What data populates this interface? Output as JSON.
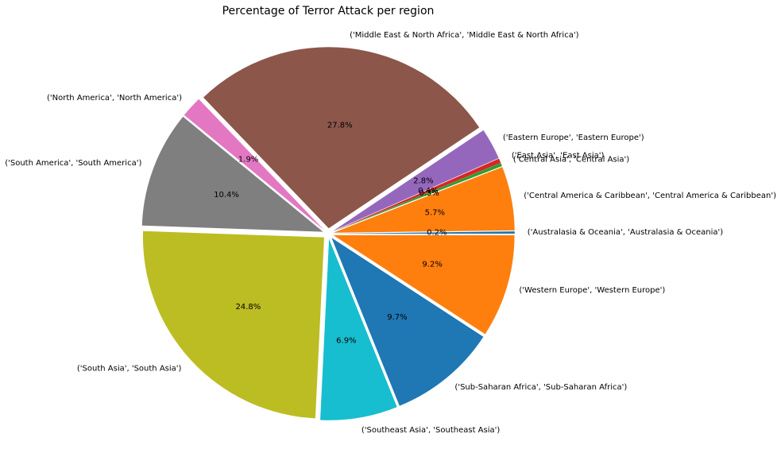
{
  "chart_data": {
    "type": "pie",
    "title": "Percentage of Terror Attack per region",
    "start_angle_deg": 0,
    "direction": "counterclockwise",
    "slices": [
      {
        "label": "('Australasia & Oceania', 'Australasia & Oceania')",
        "value": 0.2,
        "pct_label": "0.2%",
        "color": "#1f77b4"
      },
      {
        "label": "('Central America & Caribbean', 'Central America & Caribbean')",
        "value": 5.7,
        "pct_label": "5.7%",
        "color": "#ff7f0e"
      },
      {
        "label": "('Central Asia', 'Central Asia')",
        "value": 0.3,
        "pct_label": "0.3%",
        "color": "#2ca02c"
      },
      {
        "label": "('East Asia', 'East Asia')",
        "value": 0.4,
        "pct_label": "0.4%",
        "color": "#d62728"
      },
      {
        "label": "('Eastern Europe', 'Eastern Europe')",
        "value": 2.8,
        "pct_label": "2.8%",
        "color": "#9467bd"
      },
      {
        "label": "('Middle East & North Africa', 'Middle East & North Africa')",
        "value": 27.8,
        "pct_label": "27.8%",
        "color": "#8c564b"
      },
      {
        "label": "('North America', 'North America')",
        "value": 1.9,
        "pct_label": "1.9%",
        "color": "#e377c2"
      },
      {
        "label": "('South America', 'South America')",
        "value": 10.4,
        "pct_label": "10.4%",
        "color": "#7f7f7f"
      },
      {
        "label": "('South Asia', 'South Asia')",
        "value": 24.8,
        "pct_label": "24.8%",
        "color": "#bcbd22"
      },
      {
        "label": "('Southeast Asia', 'Southeast Asia')",
        "value": 6.9,
        "pct_label": "6.9%",
        "color": "#17becf"
      },
      {
        "label": "('Sub-Saharan Africa', 'Sub-Saharan Africa')",
        "value": 9.7,
        "pct_label": "9.7%",
        "color": "#1f77b4"
      },
      {
        "label": "('Western Europe', 'Western Europe')",
        "value": 9.2,
        "pct_label": "9.2%",
        "color": "#ff7f0e"
      }
    ]
  }
}
